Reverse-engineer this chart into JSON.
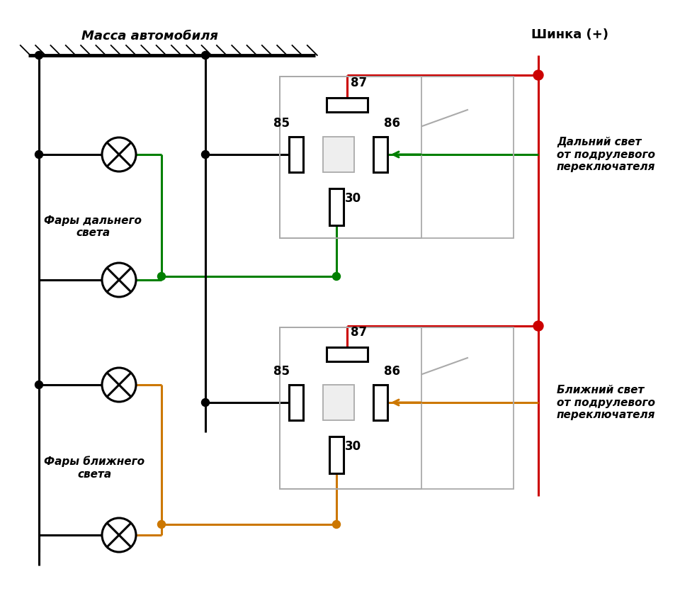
{
  "bg_color": "#ffffff",
  "ground_label": "Масса автомобиля",
  "bus_label": "Шинка (+)",
  "far_label": "Фары дальнего\nсвета",
  "near_label": "Фары ближнего\nсвета",
  "dalny_label": "Дальний свет\nот подрулевого\nпереключателя",
  "blizhniy_label": "Ближний свет\nот подрулевого\nпереключателя",
  "color_black": "#000000",
  "color_red": "#cc0000",
  "color_green": "#008000",
  "color_orange": "#cc7700",
  "color_gray": "#aaaaaa",
  "color_relay_border": "#aaaaaa",
  "lw_main": 2.2,
  "lw_hatch": 1.2,
  "lw_thin": 1.5
}
